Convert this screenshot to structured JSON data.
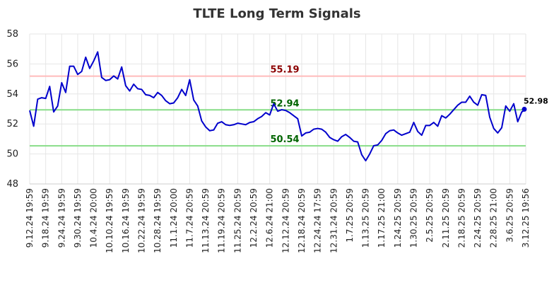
{
  "chart_data": {
    "type": "line",
    "title": "TLTE Long Term Signals",
    "xlabel": "",
    "ylabel": "",
    "ylim": [
      48,
      58
    ],
    "yticks": [
      48,
      50,
      52,
      54,
      56,
      58
    ],
    "grid": true,
    "x_tick_labels": [
      "9.12.24 19:59",
      "9.18.24 19:59",
      "9.24.24 19:59",
      "9.30.24 19:59",
      "10.4.24 20:00",
      "10.10.24 19:59",
      "10.16.24 19:59",
      "10.22.24 19:59",
      "10.28.24 19:59",
      "11.1.24 20:00",
      "11.7.24 20:59",
      "11.13.24 20:59",
      "11.19.24 20:59",
      "11.25.24 20:59",
      "12.2.24 20:59",
      "12.6.24 21:00",
      "12.12.24 20:59",
      "12.18.24 20:59",
      "12.24.24 17:59",
      "12.31.24 20:59",
      "1.7.25 20:59",
      "1.13.25 20:59",
      "1.17.25 21:00",
      "1.24.25 20:59",
      "1.30.25 20:59",
      "2.5.25 20:59",
      "2.11.25 20:59",
      "2.18.25 20:59",
      "2.24.25 20:59",
      "2.28.25 21:00",
      "3.6.25 20:59",
      "3.12.25 19:56"
    ],
    "series": [
      {
        "color": "#0000cc",
        "values": [
          52.9,
          51.85,
          53.65,
          53.75,
          53.7,
          54.5,
          52.8,
          53.2,
          54.75,
          54.1,
          55.85,
          55.85,
          55.3,
          55.5,
          56.45,
          55.7,
          56.2,
          56.8,
          55.1,
          54.9,
          54.95,
          55.2,
          55.0,
          55.8,
          54.55,
          54.2,
          54.65,
          54.35,
          54.3,
          53.95,
          53.9,
          53.75,
          54.1,
          53.9,
          53.55,
          53.35,
          53.4,
          53.75,
          54.3,
          53.9,
          54.95,
          53.6,
          53.2,
          52.2,
          51.8,
          51.55,
          51.6,
          52.05,
          52.15,
          51.95,
          51.9,
          51.95,
          52.05,
          52.0,
          51.95,
          52.1,
          52.15,
          52.35,
          52.5,
          52.75,
          52.6,
          53.35,
          52.85,
          52.95,
          52.9,
          52.75,
          52.55,
          52.35,
          51.2,
          51.4,
          51.45,
          51.65,
          51.7,
          51.65,
          51.45,
          51.1,
          50.95,
          50.85,
          51.15,
          51.3,
          51.1,
          50.85,
          50.8,
          49.95,
          49.55,
          50.0,
          50.55,
          50.6,
          50.9,
          51.35,
          51.55,
          51.6,
          51.4,
          51.25,
          51.35,
          51.45,
          52.1,
          51.5,
          51.25,
          51.9,
          51.9,
          52.1,
          51.85,
          52.55,
          52.4,
          52.65,
          52.95,
          53.25,
          53.45,
          53.45,
          53.85,
          53.45,
          53.25,
          53.95,
          53.9,
          52.45,
          51.7,
          51.4,
          51.75,
          53.2,
          52.85,
          53.35,
          52.15,
          52.8,
          52.98
        ]
      }
    ],
    "levels": [
      {
        "value": 55.19,
        "label": "55.19",
        "line_color": "#ffbbbb",
        "label_color": "#8b0000"
      },
      {
        "value": 52.94,
        "label": "52.94",
        "line_color": "#88dd88",
        "label_color": "#006400"
      },
      {
        "value": 50.54,
        "label": "50.54",
        "line_color": "#88dd88",
        "label_color": "#006400"
      }
    ],
    "last_value": 52.98,
    "last_label": "52.98"
  }
}
